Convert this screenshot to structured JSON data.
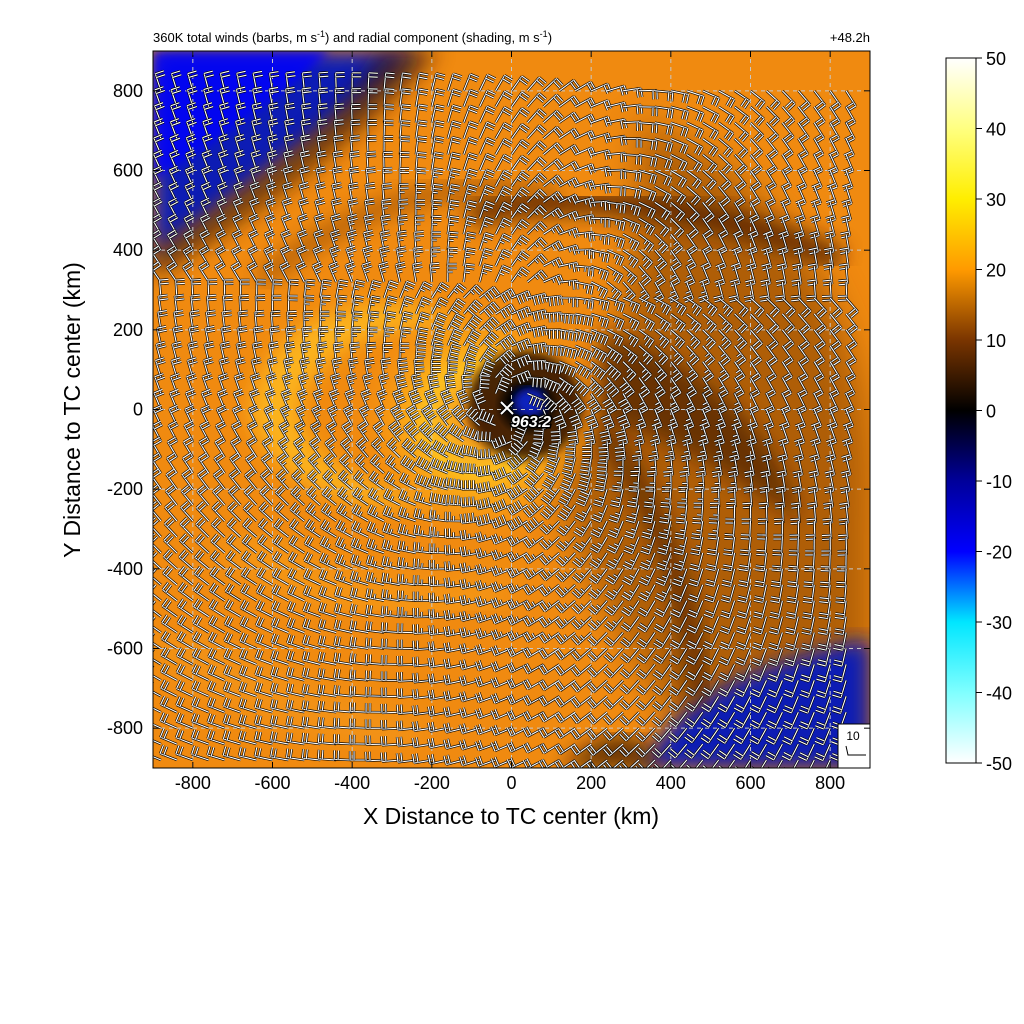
{
  "header": {
    "title_main": "360K total winds (barbs, m s",
    "title_mid": ") and radial component (shading, m s",
    "title_end": ")",
    "superscript": "-1",
    "forecast_hour": "+48.2h"
  },
  "center_marker": {
    "symbol": "×",
    "pressure_label": "963.2",
    "x": 0,
    "y": 0
  },
  "barb_legend": {
    "label": "10"
  },
  "chart_data": {
    "type": "heatmap",
    "xlabel": "X Distance to TC center (km)",
    "ylabel": "Y Distance to TC center (km)",
    "xlim": [
      -900,
      900
    ],
    "ylim": [
      -900,
      900
    ],
    "xticks": [
      -800,
      -600,
      -400,
      -200,
      0,
      200,
      400,
      600,
      800
    ],
    "yticks": [
      -800,
      -600,
      -400,
      -200,
      0,
      200,
      400,
      600,
      800
    ],
    "grid": true,
    "colorbar": {
      "range": [
        -50,
        50
      ],
      "ticks": [
        50,
        40,
        30,
        20,
        10,
        0,
        -10,
        -20,
        -30,
        -40,
        -50
      ],
      "stops": [
        {
          "value": 50,
          "color": "#ffffff"
        },
        {
          "value": 40,
          "color": "#ffff80"
        },
        {
          "value": 30,
          "color": "#ffee00"
        },
        {
          "value": 20,
          "color": "#ff9a00"
        },
        {
          "value": 10,
          "color": "#7a3500"
        },
        {
          "value": 0,
          "color": "#000000"
        },
        {
          "value": -10,
          "color": "#00009a"
        },
        {
          "value": -20,
          "color": "#0000ff"
        },
        {
          "value": -30,
          "color": "#00e6ff"
        },
        {
          "value": -40,
          "color": "#80ffff"
        },
        {
          "value": -50,
          "color": "#ffffff"
        }
      ]
    },
    "colors": {
      "warm_field": "#f08a10",
      "bright_band": "#ffc020",
      "dark_band": "#5a2a00",
      "inflow_blue": "#0a1eb4"
    }
  }
}
